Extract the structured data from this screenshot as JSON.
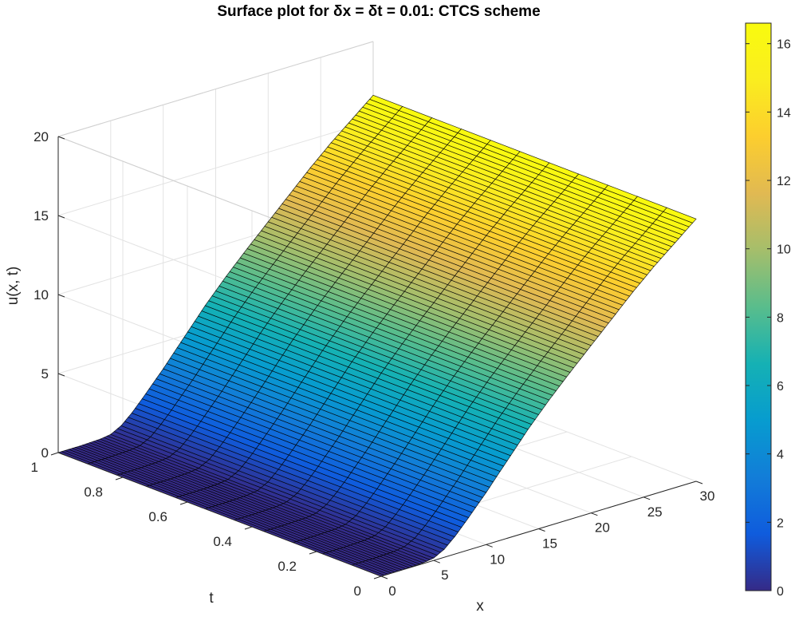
{
  "chart_data": {
    "type": "surface",
    "title": "Surface plot for δx = δt = 0.01: CTCS scheme",
    "xlabel": "x",
    "ylabel": "t",
    "zlabel": "u(x, t)",
    "xlim": [
      0,
      30
    ],
    "ylim": [
      0,
      1
    ],
    "zlim": [
      0,
      20
    ],
    "x_ticks": [
      0,
      5,
      10,
      15,
      20,
      25,
      30
    ],
    "y_ticks": [
      0,
      0.2,
      0.4,
      0.6,
      0.8,
      1
    ],
    "z_ticks": [
      0,
      5,
      10,
      15,
      20
    ],
    "x_tick_labels": [
      "0",
      "5",
      "10",
      "15",
      "20",
      "25",
      "30"
    ],
    "y_tick_labels": [
      "0",
      "0.2",
      "0.4",
      "0.6",
      "0.8",
      "1"
    ],
    "z_tick_labels": [
      "0",
      "5",
      "10",
      "15",
      "20"
    ],
    "colormap": "parula",
    "colorbar": {
      "range": [
        0,
        16.6
      ],
      "ticks": [
        0,
        2,
        4,
        6,
        8,
        10,
        12,
        14,
        16
      ],
      "tick_labels": [
        "0",
        "2",
        "4",
        "6",
        "8",
        "10",
        "12",
        "14",
        "16"
      ]
    },
    "surface_profile": {
      "x": [
        0,
        2,
        4,
        5,
        6,
        7,
        8,
        9,
        10,
        11,
        12,
        14,
        16,
        18,
        20,
        22,
        24,
        26,
        28,
        30
      ],
      "u": [
        0,
        0,
        0.05,
        0.15,
        0.5,
        1.1,
        1.8,
        2.55,
        3.3,
        4.1,
        4.9,
        6.5,
        7.95,
        9.3,
        10.6,
        11.9,
        13.2,
        14.4,
        15.5,
        16.6
      ],
      "t_range": [
        0,
        1
      ],
      "note_t": "profile constant in t"
    },
    "grid": true
  }
}
